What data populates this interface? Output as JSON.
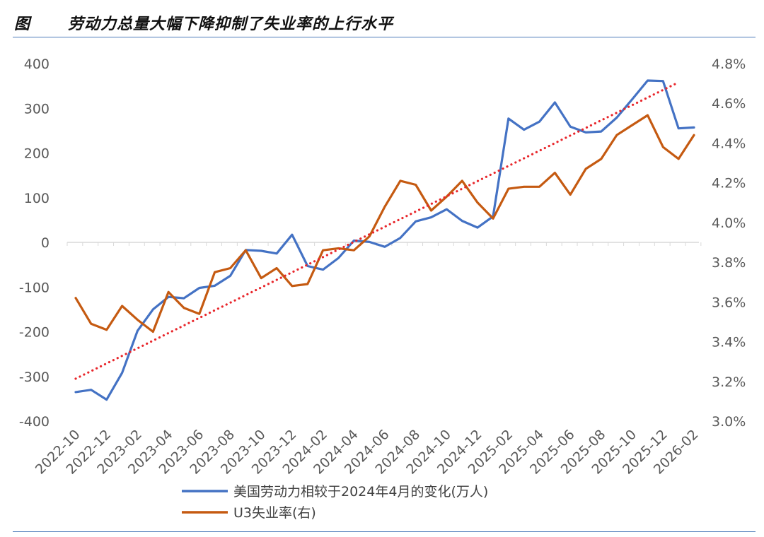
{
  "figure": {
    "label": "图",
    "title": "劳动力总量大幅下降抑制了失业率的上行水平"
  },
  "chart_data": {
    "type": "line",
    "title": "劳动力总量大幅下降抑制了失业率的上行水平",
    "x": [
      "2022-10",
      "2022-11",
      "2022-12",
      "2023-01",
      "2023-02",
      "2023-03",
      "2023-04",
      "2023-05",
      "2023-06",
      "2023-07",
      "2023-08",
      "2023-09",
      "2023-10",
      "2023-11",
      "2023-12",
      "2024-01",
      "2024-02",
      "2024-03",
      "2024-04",
      "2024-05",
      "2024-06",
      "2024-07",
      "2024-08",
      "2024-09",
      "2024-10",
      "2024-11",
      "2024-12",
      "2025-01",
      "2025-02",
      "2025-03",
      "2025-04",
      "2025-05",
      "2025-06",
      "2025-07",
      "2025-08",
      "2025-09",
      "2025-10",
      "2025-11",
      "2025-12",
      "2026-01",
      "2026-02"
    ],
    "x_tick_labels": [
      "2022-10",
      "2022-12",
      "2023-02",
      "2023-04",
      "2023-06",
      "2023-08",
      "2023-10",
      "2023-12",
      "2024-02",
      "2024-04",
      "2024-06",
      "2024-08",
      "2024-10",
      "2024-12",
      "2025-02",
      "2025-04",
      "2025-06",
      "2025-08",
      "2025-10",
      "2025-12",
      "2026-02"
    ],
    "y_left": {
      "range": [
        -400,
        400
      ],
      "ticks": [
        400,
        300,
        200,
        100,
        0,
        -100,
        -200,
        -300,
        -400
      ],
      "tick_labels": [
        "400",
        "300",
        "200",
        "100",
        "0",
        "-100",
        "-200",
        "-300",
        "-400"
      ]
    },
    "y_right": {
      "range": [
        3.0,
        4.8
      ],
      "ticks": [
        4.8,
        4.6,
        4.4,
        4.2,
        4.0,
        3.8,
        3.6,
        3.4,
        3.2,
        3.0
      ],
      "tick_labels": [
        "4.8%",
        "4.6%",
        "4.4%",
        "4.2%",
        "4.0%",
        "3.8%",
        "3.6%",
        "3.4%",
        "3.2%",
        "3.0%"
      ]
    },
    "series": [
      {
        "name": "美国劳动力相较于2024年4月的变化(万人)",
        "axis": "left",
        "color": "#4472c4",
        "values": [
          -335,
          -330,
          -352,
          -292,
          -198,
          -150,
          -122,
          -125,
          -102,
          -97,
          -75,
          -17,
          -19,
          -25,
          17,
          -53,
          -61,
          -35,
          4,
          1,
          -10,
          10,
          47,
          56,
          74,
          48,
          33,
          58,
          277,
          252,
          270,
          313,
          259,
          246,
          248,
          279,
          320,
          362,
          361,
          255,
          257
        ]
      },
      {
        "name": "U3失业率(右)",
        "axis": "right",
        "color": "#c55a11",
        "values": [
          3.62,
          3.49,
          3.46,
          3.58,
          3.51,
          3.45,
          3.65,
          3.57,
          3.54,
          3.75,
          3.77,
          3.86,
          3.72,
          3.77,
          3.68,
          3.69,
          3.86,
          3.87,
          3.86,
          3.93,
          4.08,
          4.21,
          4.19,
          4.06,
          4.13,
          4.21,
          4.1,
          4.02,
          4.17,
          4.18,
          4.18,
          4.25,
          4.14,
          4.27,
          4.32,
          4.44,
          4.49,
          4.54,
          4.38,
          4.32,
          4.44
        ]
      },
      {
        "type": "trendline",
        "style": "dotted",
        "axis": "left",
        "color": "#e8262b",
        "from": {
          "x": "2022-10",
          "y": -305
        },
        "to": {
          "x": "2026-01",
          "y": 358
        }
      }
    ],
    "legend": {
      "position": "bottom-center",
      "entries": [
        "美国劳动力相较于2024年4月的变化(万人)",
        "U3失业率(右)"
      ]
    },
    "grid": false
  }
}
